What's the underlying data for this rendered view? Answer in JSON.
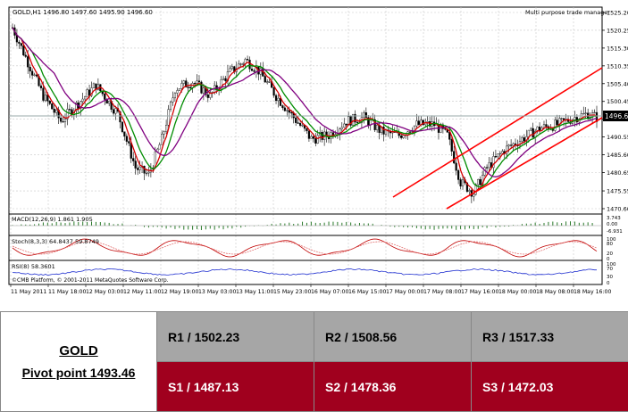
{
  "chart": {
    "header": "GOLD,H1  1496.80 1497.60 1495.90 1496.60",
    "ea_label": "Multi purpose trade manager",
    "copyright": "©CMB Platform, © 2001-2011 MetaQuotes Software Corp.",
    "current_price": "1496.60",
    "price_ticks": [
      "1525.20",
      "1520.25",
      "1515.30",
      "1510.35",
      "1505.40",
      "1500.45",
      "1495.50",
      "1490.55",
      "1485.60",
      "1480.65",
      "1475.55",
      "1470.60"
    ],
    "time_labels": [
      "11 May 2011",
      "11 May 18:00",
      "12 May 03:00",
      "12 May 11:00",
      "12 May 19:00",
      "13 May 03:00",
      "13 May 11:00",
      "15 May 23:00",
      "16 May 07:00",
      "16 May 15:00",
      "17 May 00:00",
      "17 May 08:00",
      "17 May 16:00",
      "18 May 00:00",
      "18 May 08:00",
      "18 May 16:00"
    ],
    "macd": {
      "label": "MACD(12,26,9) 1.861 1.905",
      "ticks": [
        "3.743",
        "0.00",
        "-6.931"
      ]
    },
    "stoch": {
      "label": "Stoch(8,3,3) 64.8437 59.8749",
      "ticks": [
        "100",
        "80",
        "20",
        "0"
      ]
    },
    "rsi": {
      "label": "RSI(8) 58.3601",
      "ticks": [
        "100",
        "70",
        "30",
        "0"
      ]
    },
    "colors": {
      "bull": "#ffffff",
      "bear": "#000000",
      "ma_fast": "#d40000",
      "ma_mid": "#008c00",
      "ma_slow": "#800080",
      "channel": "#ff0000",
      "rsi": "#2030d0",
      "stoch_main": "#c00000",
      "grid": "#c8c8c8"
    }
  },
  "pivot": {
    "symbol": "GOLD",
    "pivot_point": "Pivot point 1493.46",
    "resistance": [
      "R1 / 1502.23",
      "R2 / 1508.56",
      "R3 / 1517.33"
    ],
    "support": [
      "S1 / 1487.13",
      "S2 / 1478.36",
      "S3 / 1472.03"
    ]
  }
}
